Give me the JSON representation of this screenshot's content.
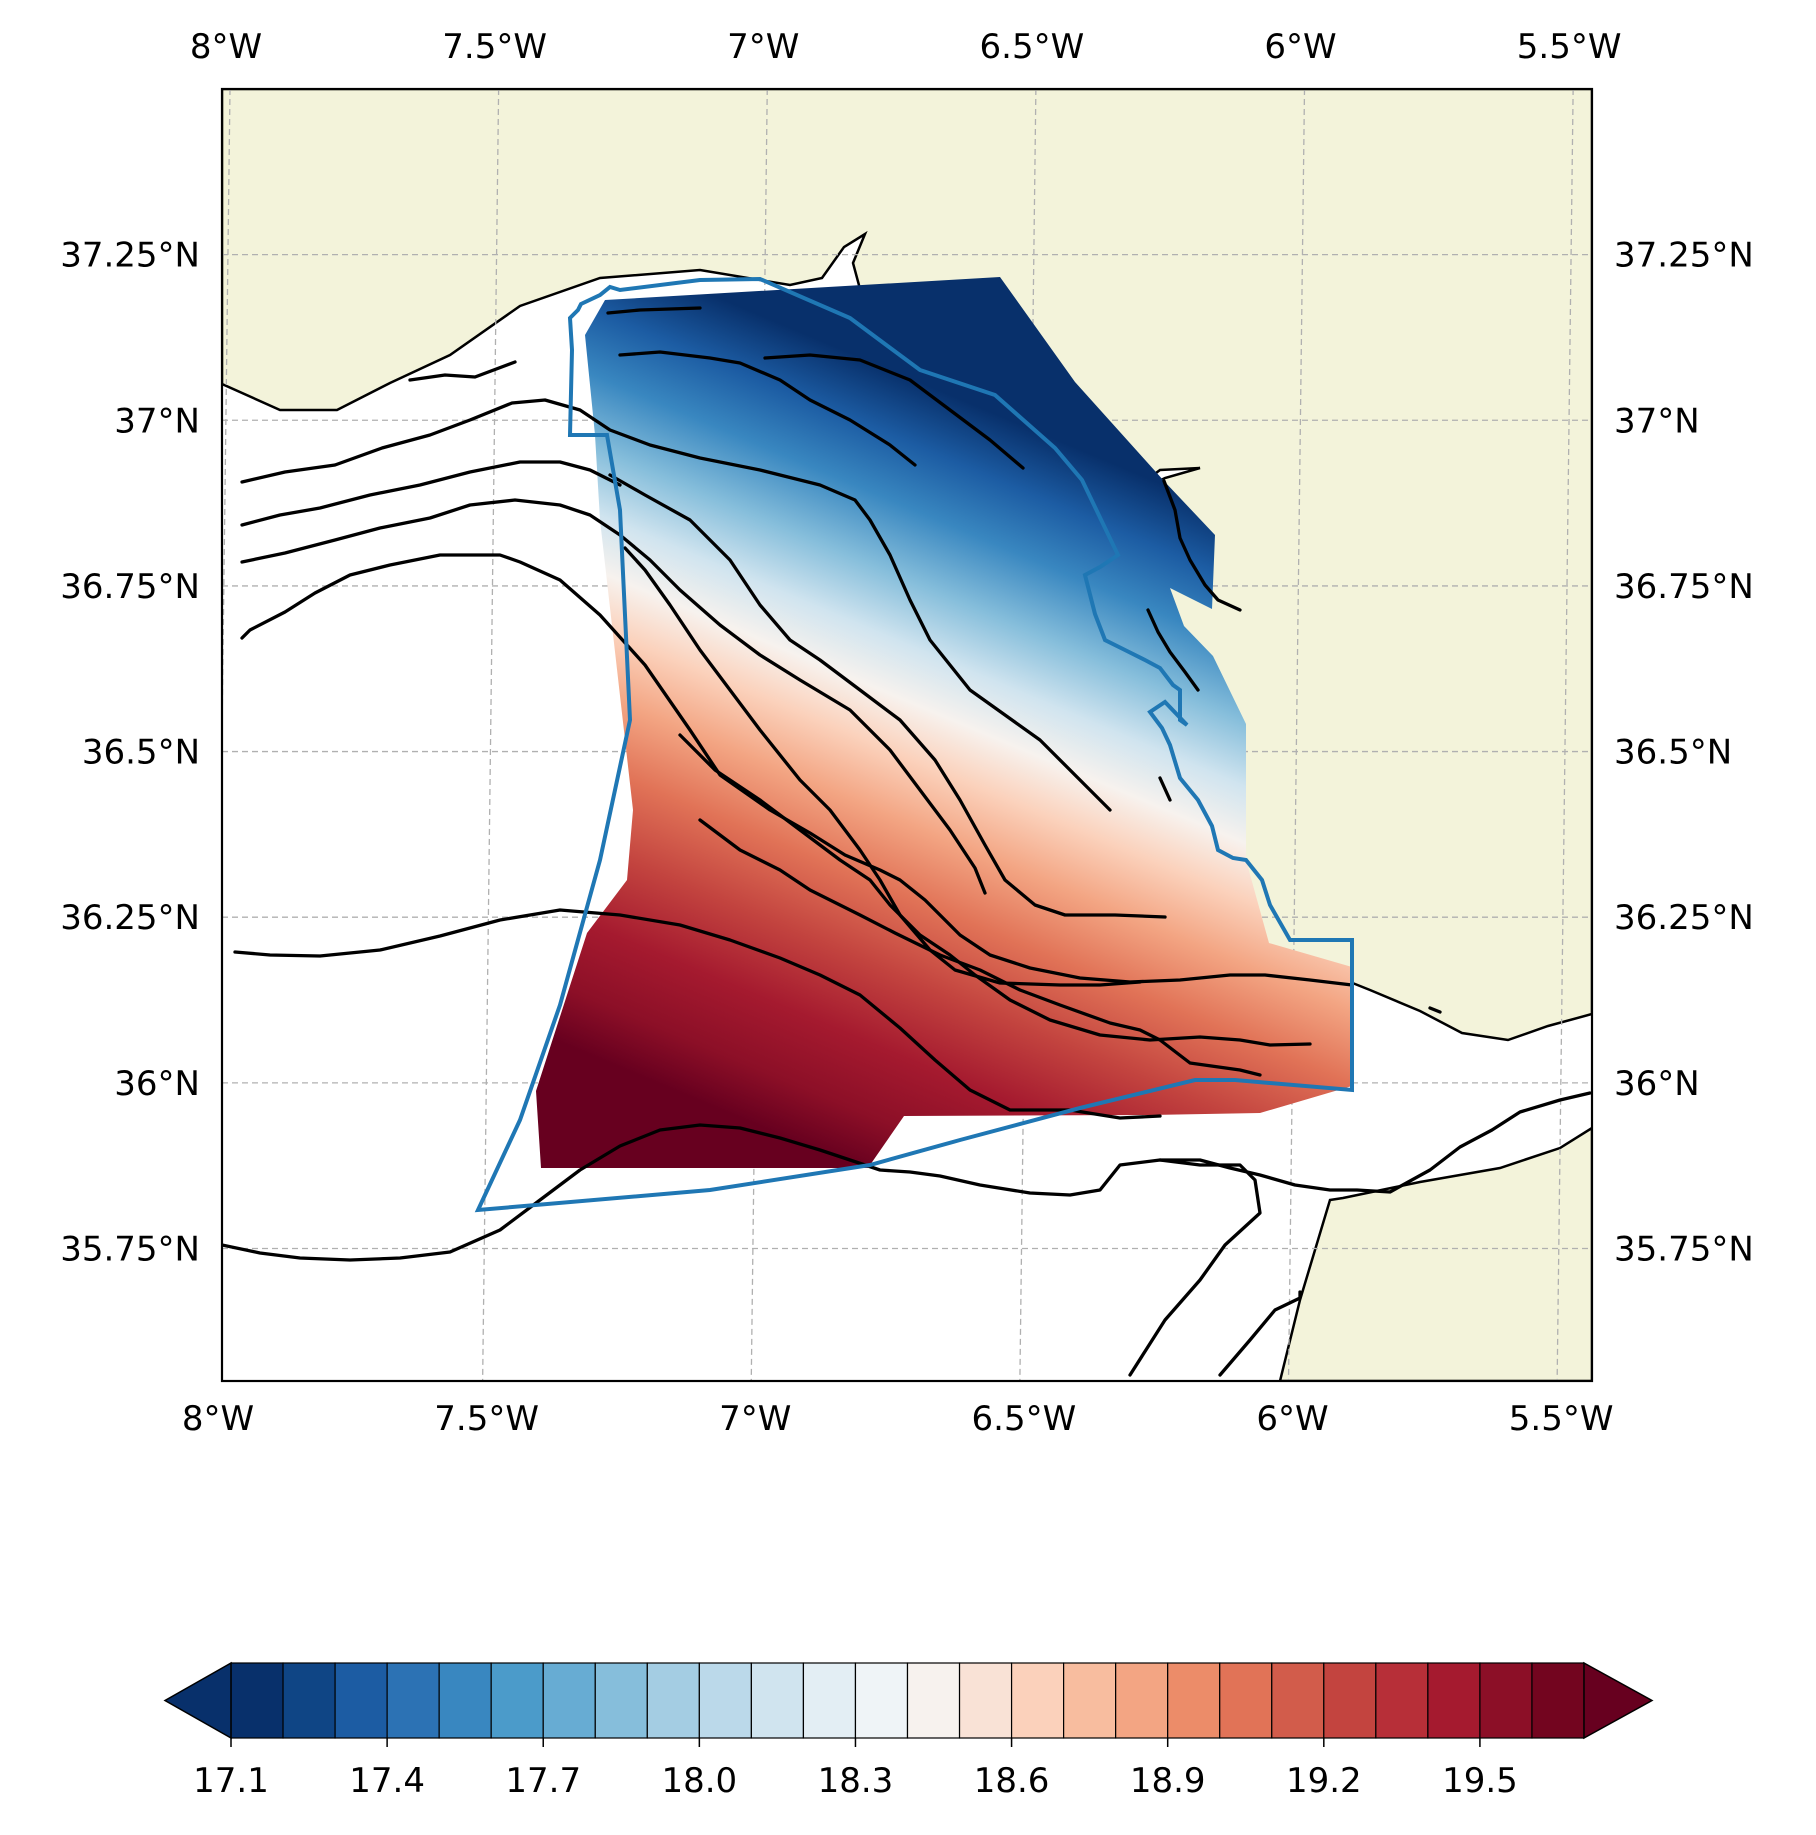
{
  "map": {
    "type": "filled-contour-map",
    "extent": {
      "lon_min": -8.0,
      "lon_max": -5.45,
      "lat_min": 35.55,
      "lat_max": 37.5
    },
    "gridlines": true,
    "gridline_style": "dashed",
    "lon_ticks": [
      {
        "value": -8.0,
        "label": "8°W"
      },
      {
        "value": -7.5,
        "label": "7.5°W"
      },
      {
        "value": -7.0,
        "label": "7°W"
      },
      {
        "value": -6.5,
        "label": "6.5°W"
      },
      {
        "value": -6.0,
        "label": "6°W"
      },
      {
        "value": -5.5,
        "label": "5.5°W"
      }
    ],
    "lat_ticks": [
      {
        "value": 37.25,
        "label": "37.25°N"
      },
      {
        "value": 37.0,
        "label": "37°N"
      },
      {
        "value": 36.75,
        "label": "36.75°N"
      },
      {
        "value": 36.5,
        "label": "36.5°N"
      },
      {
        "value": 36.25,
        "label": "36.25°N"
      },
      {
        "value": 36.0,
        "label": "36°N"
      },
      {
        "value": 35.75,
        "label": "35.75°N"
      }
    ],
    "colors": {
      "land": "#f3f3da",
      "ocean": "#ffffff",
      "domain_outline": "#1f77b4",
      "contour_lines": "#000000",
      "grid": "#b0b0b0"
    }
  },
  "colorbar": {
    "colormap": "RdBu_r",
    "extend": "both",
    "levels": [
      17.1,
      17.2,
      17.3,
      17.4,
      17.5,
      17.6,
      17.7,
      17.8,
      17.9,
      18.0,
      18.1,
      18.2,
      18.3,
      18.4,
      18.5,
      18.6,
      18.7,
      18.8,
      18.9,
      19.0,
      19.1,
      19.2,
      19.3,
      19.4,
      19.5,
      19.6,
      19.7
    ],
    "colors": [
      "#08306b",
      "#0f4585",
      "#1c5ca3",
      "#2c72b4",
      "#3987c0",
      "#4b9bca",
      "#67acd3",
      "#86bedb",
      "#a4cde3",
      "#bbd9ea",
      "#d0e4ef",
      "#e3eef4",
      "#eff4f7",
      "#f7f2ee",
      "#f9e2d6",
      "#fbd1bb",
      "#f8bd9f",
      "#f3a583",
      "#ec8c69",
      "#e17357",
      "#d25c4b",
      "#c3443f",
      "#b72f38",
      "#a51a2f",
      "#8c0f27",
      "#73051f"
    ],
    "under_color": "#08306b",
    "over_color": "#67001f",
    "tick_labels": [
      "17.1",
      "17.4",
      "17.7",
      "18.0",
      "18.3",
      "18.6",
      "18.9",
      "19.2",
      "19.5"
    ]
  }
}
